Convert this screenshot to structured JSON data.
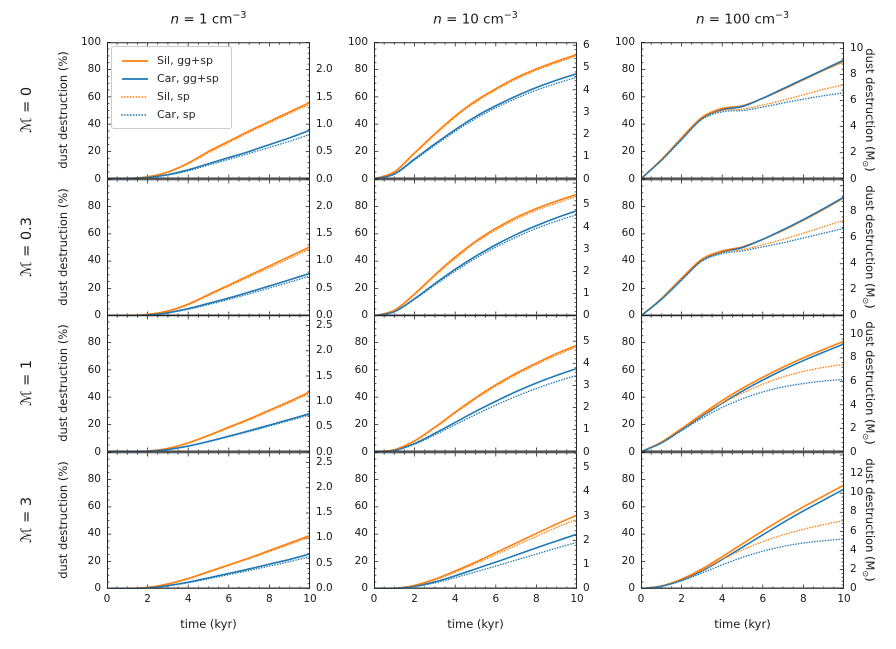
{
  "chart_data": {
    "type": "line",
    "x": {
      "label": "time (kyr)",
      "min": 0,
      "max": 10,
      "ticks": [
        0,
        2,
        4,
        6,
        8,
        10
      ]
    },
    "y_left": {
      "label": "dust destruction (%)",
      "min": 0,
      "max": 100,
      "ticks": [
        0,
        20,
        40,
        60,
        80,
        100
      ]
    },
    "y_right_label": {
      "pre": "dust destruction (M",
      "sub": "⊙",
      "post": ")"
    },
    "columns": [
      {
        "var": "n",
        "mid": " = 1 cm",
        "sup": "−3"
      },
      {
        "var": "n",
        "mid": " = 10 cm",
        "sup": "−3"
      },
      {
        "var": "n",
        "mid": " = 100 cm",
        "sup": "−3"
      }
    ],
    "rows": [
      {
        "var": "ℳ",
        "rest": " = 0"
      },
      {
        "var": "ℳ",
        "rest": " = 0.3"
      },
      {
        "var": "ℳ",
        "rest": " = 1"
      },
      {
        "var": "ℳ",
        "rest": " = 3"
      }
    ],
    "legend": [
      {
        "label": "Sil, gg+sp",
        "color": "#ff7f0e",
        "dash": "solid"
      },
      {
        "label": "Car, gg+sp",
        "color": "#1f77b4",
        "dash": "solid"
      },
      {
        "label": "Sil, sp",
        "color": "#ff7f0e",
        "dash": "dotted"
      },
      {
        "label": "Car, sp",
        "color": "#1f77b4",
        "dash": "dotted"
      }
    ],
    "colors": {
      "sil": "#ff7f0e",
      "car": "#1f77b4",
      "zero_line": "#a3a3a3",
      "spine": "#262626"
    },
    "t": [
      0,
      1,
      2,
      3,
      4,
      5,
      6,
      7,
      8,
      9,
      10
    ],
    "panels": [
      {
        "row": 0,
        "col": 0,
        "left_tick_labels": [
          0,
          20,
          40,
          60,
          80,
          100
        ],
        "right_ticks": [
          [
            "2.0",
            0.8
          ],
          [
            "1.5",
            0.6
          ],
          [
            "1.0",
            0.4
          ],
          [
            "0.5",
            0.2
          ],
          [
            "0.0",
            0
          ]
        ],
        "series": {
          "sil_ggsp": [
            0,
            0.2,
            1.5,
            5,
            11.5,
            20,
            27.5,
            35,
            42,
            49,
            56
          ],
          "car_ggsp": [
            0,
            0.1,
            1,
            3,
            6.5,
            11,
            15.5,
            20,
            25,
            30,
            35.5
          ],
          "sil_sp": [
            0,
            0.2,
            1.4,
            4.7,
            11,
            19,
            26.5,
            34,
            41,
            48,
            54.5
          ],
          "car_sp": [
            0,
            0.1,
            0.9,
            2.7,
            5.8,
            10,
            14.2,
            18.5,
            23,
            27.5,
            32.5
          ]
        }
      },
      {
        "row": 0,
        "col": 1,
        "left_tick_labels": [
          0,
          20,
          40,
          60,
          80,
          100
        ],
        "right_ticks": [
          [
            "6",
            0.978
          ],
          [
            "5",
            0.815
          ],
          [
            "4",
            0.652
          ],
          [
            "3",
            0.489
          ],
          [
            "2",
            0.326
          ],
          [
            "1",
            0.163
          ],
          [
            "0",
            0
          ]
        ],
        "series": {
          "sil_ggsp": [
            0,
            5,
            19,
            33,
            46,
            57,
            66,
            74,
            80.5,
            86,
            91
          ],
          "car_ggsp": [
            0,
            3.5,
            14.5,
            25.5,
            36,
            45.5,
            53.5,
            60.5,
            66.8,
            72.2,
            77
          ],
          "sil_sp": [
            0,
            4.8,
            18.5,
            32.3,
            45.2,
            56,
            65,
            73,
            79.5,
            85,
            90
          ],
          "car_sp": [
            0,
            3.2,
            13.8,
            24.5,
            34.7,
            44,
            52,
            58.8,
            64.9,
            69.9,
            74.5
          ]
        }
      },
      {
        "row": 0,
        "col": 2,
        "left_tick_labels": [
          0,
          20,
          40,
          60,
          80,
          100
        ],
        "right_ticks": [
          [
            "10",
            0.955
          ],
          [
            "8",
            0.764
          ],
          [
            "6",
            0.573
          ],
          [
            "4",
            0.382
          ],
          [
            "2",
            0.191
          ],
          [
            "0",
            0
          ]
        ],
        "series": {
          "sil_ggsp": [
            0,
            14,
            30,
            45,
            51.5,
            53.5,
            59,
            65.5,
            72.5,
            79.5,
            86
          ],
          "car_ggsp": [
            0,
            13.5,
            29,
            44,
            50.5,
            53,
            59,
            66,
            73,
            80,
            87
          ],
          "sil_sp": [
            0,
            13.8,
            29.5,
            44.5,
            50,
            51,
            54,
            57.5,
            61.5,
            65.5,
            69
          ],
          "car_sp": [
            0,
            13.3,
            28.5,
            43.5,
            49,
            50,
            52.5,
            55.5,
            58.3,
            60.8,
            63
          ]
        }
      },
      {
        "row": 1,
        "col": 0,
        "left_tick_labels": [
          0,
          20,
          40,
          60,
          80
        ],
        "right_ticks": [
          [
            "2.0",
            0.8
          ],
          [
            "1.5",
            0.6
          ],
          [
            "1.0",
            0.4
          ],
          [
            "0.5",
            0.2
          ],
          [
            "0.0",
            0
          ]
        ],
        "series": {
          "sil_ggsp": [
            0,
            0.1,
            1,
            3.5,
            8.5,
            15.5,
            22.5,
            29.5,
            36.5,
            43.5,
            50.5
          ],
          "car_ggsp": [
            0,
            0,
            0.7,
            2.3,
            5.2,
            9,
            13,
            17.3,
            21.8,
            26.4,
            31
          ],
          "sil_sp": [
            0,
            0.1,
            0.9,
            3.2,
            8,
            14.8,
            21.6,
            28.4,
            35.2,
            42,
            49
          ],
          "car_sp": [
            0,
            0,
            0.6,
            2,
            4.7,
            8.2,
            12,
            16,
            20.3,
            24.6,
            29
          ]
        }
      },
      {
        "row": 1,
        "col": 1,
        "left_tick_labels": [
          0,
          20,
          40,
          60,
          80
        ],
        "right_ticks": [
          [
            "5",
            0.81
          ],
          [
            "4",
            0.648
          ],
          [
            "3",
            0.486
          ],
          [
            "2",
            0.324
          ],
          [
            "1",
            0.162
          ],
          [
            "0",
            0
          ]
        ],
        "series": {
          "sil_ggsp": [
            0,
            4,
            16,
            30,
            43,
            54.5,
            64,
            72,
            78.5,
            84,
            89
          ],
          "car_ggsp": [
            0,
            3,
            12.5,
            23.5,
            34,
            43.5,
            52,
            59.5,
            66,
            71.8,
            77
          ],
          "sil_sp": [
            0,
            3.8,
            15.5,
            29.2,
            42,
            53.4,
            62.8,
            70.7,
            77.2,
            82.6,
            87.5
          ],
          "car_sp": [
            0,
            2.8,
            12,
            22.5,
            32.7,
            42,
            50.3,
            57.6,
            64,
            69.4,
            74
          ]
        }
      },
      {
        "row": 1,
        "col": 2,
        "left_tick_labels": [
          0,
          20,
          40,
          60,
          80
        ],
        "right_ticks": [
          [
            "8",
            0.762
          ],
          [
            "6",
            0.5715
          ],
          [
            "4",
            0.381
          ],
          [
            "2",
            0.1905
          ],
          [
            "0",
            0
          ]
        ],
        "series": {
          "sil_ggsp": [
            0,
            12.5,
            27.5,
            41.5,
            47.5,
            50.5,
            56,
            62.5,
            70,
            78,
            86.5
          ],
          "car_ggsp": [
            0,
            12,
            26.5,
            40.5,
            46.5,
            50,
            56,
            63,
            70.5,
            78.5,
            87
          ],
          "sil_sp": [
            0,
            12.2,
            27,
            41,
            46.5,
            48.5,
            52,
            56,
            60.5,
            65.3,
            70
          ],
          "car_sp": [
            0,
            11.8,
            26,
            40,
            45.5,
            47.5,
            50.5,
            53.5,
            57,
            60.5,
            64
          ]
        }
      },
      {
        "row": 2,
        "col": 0,
        "left_tick_labels": [
          0,
          20,
          40,
          60,
          80
        ],
        "right_ticks": [
          [
            "2.5",
            0.925
          ],
          [
            "2.0",
            0.74
          ],
          [
            "1.5",
            0.555
          ],
          [
            "1.0",
            0.37
          ],
          [
            "0.5",
            0.185
          ],
          [
            "0.0",
            0
          ]
        ],
        "series": {
          "sil_ggsp": [
            0,
            0,
            0.5,
            2.5,
            6.5,
            12,
            18,
            24,
            30.5,
            37,
            44
          ],
          "car_ggsp": [
            0,
            0,
            0.4,
            1.7,
            4.2,
            7.6,
            11.4,
            15.4,
            19.5,
            23.7,
            28
          ],
          "sil_sp": [
            0,
            0,
            0.5,
            2.4,
            6.2,
            11.6,
            17.4,
            23.3,
            29.7,
            36,
            43
          ],
          "car_sp": [
            0,
            0,
            0.4,
            1.6,
            4,
            7.3,
            11,
            14.8,
            18.8,
            22.9,
            27
          ]
        }
      },
      {
        "row": 2,
        "col": 1,
        "left_tick_labels": [
          0,
          20,
          40,
          60,
          80
        ],
        "right_ticks": [
          [
            "5",
            0.81
          ],
          [
            "4",
            0.648
          ],
          [
            "3",
            0.486
          ],
          [
            "2",
            0.324
          ],
          [
            "1",
            0.162
          ],
          [
            "0",
            0
          ]
        ],
        "series": {
          "sil_ggsp": [
            0,
            1.5,
            8,
            18,
            29,
            39.5,
            49,
            57.5,
            65,
            72,
            78
          ],
          "car_ggsp": [
            0,
            1,
            6,
            13.5,
            21.5,
            29.5,
            37,
            44,
            50.3,
            56,
            61
          ],
          "sil_sp": [
            0,
            1.4,
            7.7,
            17.5,
            28.3,
            38.6,
            48,
            56.4,
            63.9,
            70.8,
            77
          ],
          "car_sp": [
            0,
            0.9,
            5.5,
            12.4,
            19.8,
            27.2,
            34.2,
            40.6,
            46.4,
            51.5,
            56
          ]
        }
      },
      {
        "row": 2,
        "col": 2,
        "left_tick_labels": [
          0,
          20,
          40,
          60,
          80
        ],
        "right_ticks": [
          [
            "10",
            0.861
          ],
          [
            "8",
            0.689
          ],
          [
            "6",
            0.517
          ],
          [
            "4",
            0.344
          ],
          [
            "2",
            0.172
          ],
          [
            "0",
            0
          ]
        ],
        "series": {
          "sil_ggsp": [
            0,
            7,
            17,
            27.5,
            37.5,
            46.5,
            54.5,
            62,
            68.8,
            75,
            81
          ],
          "car_ggsp": [
            0,
            6.5,
            16,
            26,
            35.5,
            44.5,
            52.5,
            60,
            66.8,
            73,
            79
          ],
          "sil_sp": [
            0,
            6.8,
            16.5,
            26.5,
            35.5,
            43,
            49.5,
            54.8,
            58.8,
            61.8,
            64
          ],
          "car_sp": [
            0,
            6.3,
            15.5,
            24.5,
            32.5,
            38.8,
            43.8,
            47.5,
            50,
            51.8,
            53
          ]
        }
      },
      {
        "row": 3,
        "col": 0,
        "left_tick_labels": [
          0,
          20,
          40,
          60,
          80
        ],
        "right_ticks": [
          [
            "2.5",
            0.925
          ],
          [
            "2.0",
            0.74
          ],
          [
            "1.5",
            0.555
          ],
          [
            "1.0",
            0.37
          ],
          [
            "0.5",
            0.185
          ],
          [
            "0.0",
            0
          ]
        ],
        "series": {
          "sil_ggsp": [
            0,
            0.1,
            1,
            3.5,
            7.5,
            12.5,
            17.5,
            22.5,
            28,
            33.5,
            39
          ],
          "car_ggsp": [
            0,
            0,
            0.7,
            2.3,
            4.8,
            8,
            11.2,
            14.5,
            18,
            21.5,
            25.5
          ],
          "sil_sp": [
            0,
            0.1,
            1,
            3.4,
            7.2,
            12,
            17,
            22,
            27.2,
            32.5,
            38
          ],
          "car_sp": [
            0,
            0,
            0.6,
            2.1,
            4.4,
            7.3,
            10.3,
            13.4,
            16.6,
            19.9,
            23.5
          ]
        }
      },
      {
        "row": 3,
        "col": 1,
        "left_tick_labels": [
          0,
          20,
          40,
          60,
          80
        ],
        "right_ticks": [
          [
            "5",
            0.885
          ],
          [
            "4",
            0.708
          ],
          [
            "3",
            0.531
          ],
          [
            "2",
            0.354
          ],
          [
            "1",
            0.177
          ],
          [
            "0",
            0
          ]
        ],
        "series": {
          "sil_ggsp": [
            0,
            0.3,
            2.5,
            7,
            13,
            19.5,
            26.5,
            33.5,
            40.5,
            47.5,
            54
          ],
          "car_ggsp": [
            0,
            0.2,
            1.8,
            5,
            9.5,
            14.5,
            19.5,
            24.7,
            30,
            35,
            40
          ],
          "sil_sp": [
            0,
            0.3,
            2.3,
            6.5,
            12.2,
            18.4,
            25,
            31.7,
            38.4,
            45,
            51
          ],
          "car_sp": [
            0,
            0.2,
            1.5,
            4.3,
            8.1,
            12.3,
            16.6,
            21,
            25.4,
            29.8,
            34
          ]
        }
      },
      {
        "row": 3,
        "col": 2,
        "left_tick_labels": [
          0,
          20,
          40,
          60,
          80
        ],
        "right_ticks": [
          [
            "12",
            0.842
          ],
          [
            "10",
            0.702
          ],
          [
            "8",
            0.561
          ],
          [
            "6",
            0.421
          ],
          [
            "4",
            0.281
          ],
          [
            "2",
            0.14
          ],
          [
            "0",
            0
          ]
        ],
        "series": {
          "sil_ggsp": [
            0,
            2,
            7,
            14.5,
            23.5,
            33,
            42.5,
            51.5,
            60,
            68,
            76
          ],
          "car_ggsp": [
            0,
            1.8,
            6.3,
            13,
            21.5,
            30.5,
            39.5,
            48.5,
            57,
            65,
            73
          ],
          "sil_sp": [
            0,
            1.9,
            6.6,
            13.5,
            21.5,
            28.5,
            34.5,
            39.5,
            43.5,
            47,
            50
          ],
          "car_sp": [
            0,
            1.7,
            5.8,
            11.5,
            17.5,
            23,
            27.5,
            31,
            33.5,
            35.2,
            36.5
          ]
        }
      }
    ]
  }
}
